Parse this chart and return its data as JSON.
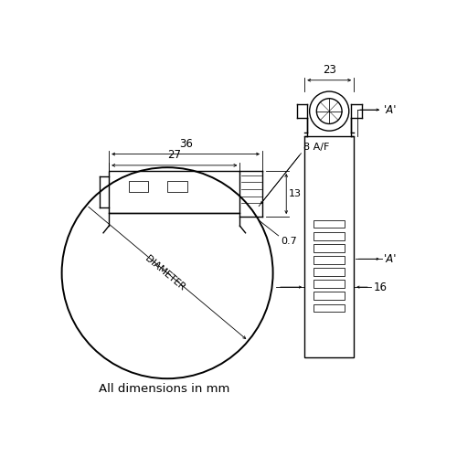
{
  "bg_color": "#ffffff",
  "line_color": "#000000",
  "text_color": "#000000",
  "linewidth": 1.0,
  "thin_lw": 0.7,
  "dim_lw": 0.6,
  "annotation": "All dimensions in mm",
  "dim_36_label": "36",
  "dim_27_label": "27",
  "dim_8af_label": "8 A/F",
  "dim_13_label": "13",
  "dim_diameter_label": "DIAMETER",
  "dim_07_label": "0.7",
  "dim_23_label": "23",
  "dim_A_label1": "'A'",
  "dim_A_label2": "'A'",
  "dim_16_label": "16"
}
